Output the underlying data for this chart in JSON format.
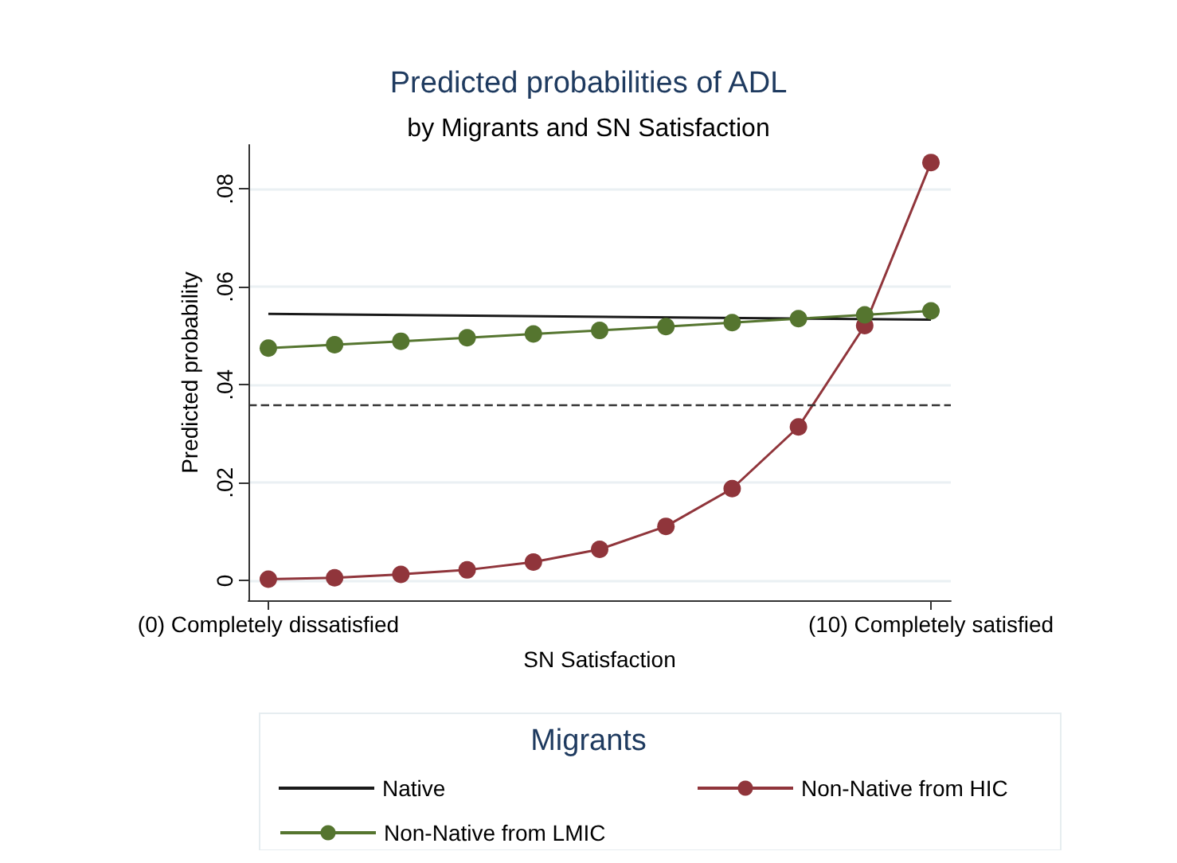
{
  "chart_data": {
    "type": "line",
    "title": "Predicted probabilities of ADL",
    "subtitle": "by Migrants and SN Satisfaction",
    "xlabel": "SN Satisfaction",
    "ylabel": "Predicted probability",
    "legend_title": "Migrants",
    "legend": "bottom",
    "grid": "y",
    "marker": "circle",
    "x": [
      0,
      1,
      2,
      3,
      4,
      5,
      6,
      7,
      8,
      9,
      10
    ],
    "xlim": [
      -0.3,
      10.3
    ],
    "xticks": [
      {
        "value": 0,
        "label": "(0) Completely dissatisfied"
      },
      {
        "value": 10,
        "label": "(10) Completely satisfied"
      }
    ],
    "ylim": [
      -0.004,
      0.089
    ],
    "yticks": [
      0,
      {
        "value": 0.02,
        "label": ".02"
      },
      {
        "value": 0.04,
        "label": ".04"
      },
      {
        "value": 0.06,
        "label": ".06"
      },
      {
        "value": 0.08,
        "label": ".08"
      }
    ],
    "ref_lines": [
      {
        "axis": "y",
        "value": 0.036,
        "label": null,
        "color": "#333333",
        "line_style": "dashed"
      }
    ],
    "series": [
      {
        "name": "Native",
        "color": "#1a1a1a",
        "marker": "none",
        "x": [
          0,
          10
        ],
        "values": [
          0.0545,
          0.0533
        ]
      },
      {
        "name": "Non-Native from HIC",
        "color": "#90353b",
        "values": [
          0.0003,
          0.0006,
          0.0013,
          0.0022,
          0.0038,
          0.0064,
          0.0111,
          0.0188,
          0.0314,
          0.0521,
          0.0854
        ]
      },
      {
        "name": "Non-Native from LMIC",
        "color": "#55752f",
        "values": [
          0.0475,
          0.0482,
          0.0489,
          0.0496,
          0.0504,
          0.0511,
          0.0519,
          0.0527,
          0.0535,
          0.0543,
          0.0551
        ]
      }
    ]
  }
}
